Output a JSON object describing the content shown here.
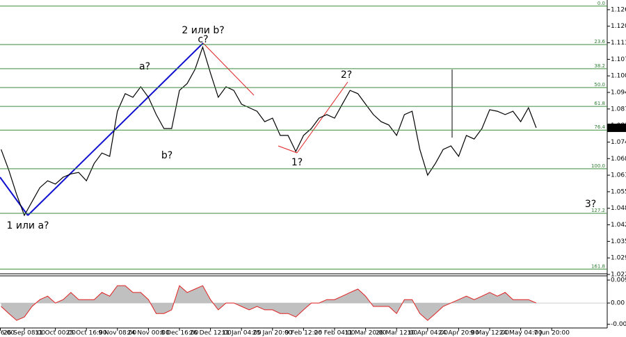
{
  "chart_data": [
    {
      "type": "line",
      "categories": [
        "6:00",
        null,
        null,
        null,
        "26 Sep 08:00",
        null,
        null,
        null,
        "11 Oct 00:00",
        null,
        null,
        null,
        "25 Oct 16:00",
        null,
        null,
        null,
        "9 Nov 08:00",
        null,
        null,
        null,
        "24 Nov 00:00",
        null,
        null,
        null,
        "8 Dec 16:00",
        null,
        null,
        null,
        "26 Dec 12:00",
        null,
        null,
        null,
        "11 Jan 04:00",
        null,
        null,
        null,
        "25 Jan 20:00",
        null,
        null,
        null,
        "9 Feb 12:00",
        null,
        null,
        null,
        "26 Feb 04:00",
        null,
        null,
        null,
        "11 Mar 20:00",
        null,
        null,
        null,
        "26 Mar 12:00",
        null,
        null,
        null,
        "10 Apr 04:00",
        null,
        null,
        null,
        "24 Apr 20:00",
        null,
        null,
        null,
        "9 May 12:00",
        null,
        null,
        null,
        "24 May 04:00",
        null,
        null,
        null,
        "7 Jun 20:00"
      ],
      "series": [
        {
          "color": "#000000",
          "values": [
            null,
            1.0716,
            1.0634,
            1.0539,
            1.0457,
            1.0511,
            1.0566,
            1.0593,
            1.058,
            1.0607,
            1.062,
            1.0626,
            1.0593,
            1.0661,
            1.0702,
            1.0689,
            1.0866,
            1.0935,
            1.0921,
            1.0962,
            1.0921,
            1.0853,
            1.0798,
            1.0798,
            1.0948,
            1.0975,
            1.103,
            1.1118,
            1.1016,
            1.0921,
            1.0962,
            1.0948,
            1.0894,
            1.088,
            1.0866,
            1.0825,
            1.0839,
            1.0771,
            1.0771,
            1.0708,
            1.0771,
            1.0798,
            1.0839,
            1.0853,
            1.0839,
            1.0894,
            1.0948,
            1.0935,
            1.0894,
            1.0853,
            1.0825,
            1.0812,
            1.0771,
            1.0853,
            1.0866,
            1.0716,
            1.0615,
            1.0661,
            1.0716,
            1.073,
            1.0689,
            1.0771,
            1.0757,
            1.0798,
            1.0872,
            1.0866,
            1.0853,
            1.0866,
            1.0825,
            1.088,
            1.0801,
            null,
            null
          ]
        }
      ],
      "ylim": [
        1.0225,
        1.1303
      ],
      "yticks": [
        1.1265,
        {
          "value": 1.12,
          "label": "1.1200"
        },
        1.1135,
        {
          "value": 1.107,
          "label": "1.1070"
        },
        1.1005,
        {
          "value": 1.094,
          "label": "1.0940"
        },
        1.0875,
        {
          "value": 1.081,
          "label": "1.0810"
        },
        1.0745,
        {
          "value": 1.068,
          "label": "1.0680"
        },
        1.0615,
        {
          "value": 1.055,
          "label": "1.0550"
        },
        1.0485,
        {
          "value": 1.042,
          "label": "1.0420"
        },
        1.0355,
        {
          "value": 1.029,
          "label": "1.0290"
        },
        1.0225
      ],
      "current_price": 1.0801,
      "fib_levels": [
        {
          "value": 1.1279,
          "label": "0.0"
        },
        {
          "value": 1.1128,
          "label": "23.6"
        },
        {
          "value": 1.1033,
          "label": "38.2"
        },
        {
          "value": 1.0959,
          "label": "50.0"
        },
        {
          "value": 1.0885,
          "label": "61.8"
        },
        {
          "value": 1.0792,
          "label": "76.4"
        },
        {
          "value": 1.064,
          "label": "100.0"
        },
        {
          "value": 1.0465,
          "label": "127.2"
        },
        {
          "value": 1.0246,
          "label": "161.8"
        }
      ],
      "annotations": [
        "2 или b?",
        "c?",
        "a?",
        "b?",
        "1 или a?",
        "1?",
        "2?",
        "3?"
      ]
    },
    {
      "type": "area",
      "series": [
        {
          "color": "#e02020",
          "fill": "#c0c0c0",
          "values": [
            null,
            -0.0014,
            -0.0043,
            -0.0071,
            -0.0057,
            -0.0014,
            0.0014,
            0.0028,
            0,
            0.0014,
            0.0043,
            0.0014,
            0.0014,
            0.0014,
            0.0043,
            0.0028,
            0.0071,
            0.0071,
            0.0043,
            0.0043,
            0.0014,
            -0.0043,
            -0.0043,
            -0.0028,
            0.0071,
            0.0043,
            0.0057,
            0.0071,
            0.0014,
            -0.0028,
            0,
            0,
            -0.0014,
            -0.0028,
            -0.0014,
            -0.0028,
            -0.0028,
            -0.0043,
            -0.0043,
            -0.0057,
            -0.0028,
            0,
            0,
            0.0014,
            0.0014,
            0.0028,
            0.0043,
            0.0057,
            0.0028,
            -0.0014,
            -0.0014,
            -0.0014,
            -0.0043,
            0.0014,
            0.0014,
            -0.0043,
            -0.0071,
            -0.0043,
            -0.0014,
            0,
            0.0014,
            0.0028,
            0.0014,
            0.0028,
            0.0043,
            0.0028,
            0.0043,
            0.0014,
            0.0014,
            0.0014,
            0,
            null,
            null
          ]
        }
      ],
      "ylim": [
        -0.0102,
        0.0111
      ],
      "yticks": [
        0.00938,
        {
          "value": 0,
          "label": "0.00"
        },
        -0.0087
      ]
    }
  ]
}
